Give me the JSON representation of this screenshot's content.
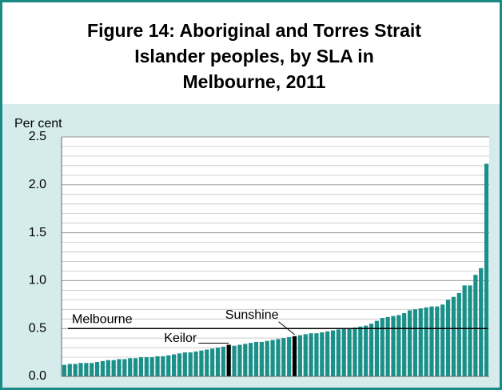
{
  "chart_data": {
    "type": "bar",
    "title": [
      "Figure 14: Aboriginal and Torres Strait",
      "Islander peoples, by SLA in",
      "Melbourne, 2011"
    ],
    "y_label": "Per cent",
    "categories": [
      null,
      null,
      null,
      null,
      null,
      null,
      null,
      null,
      null,
      null,
      null,
      null,
      null,
      null,
      null,
      null,
      null,
      null,
      null,
      null,
      null,
      null,
      null,
      null,
      null,
      null,
      null,
      null,
      null,
      null,
      "Keilor",
      null,
      null,
      null,
      null,
      null,
      null,
      null,
      null,
      null,
      null,
      null,
      "Sunshine",
      null,
      null,
      null,
      null,
      null,
      null,
      null,
      null,
      null,
      null,
      null,
      null,
      null,
      null,
      null,
      null,
      null,
      null,
      null,
      null,
      null,
      null,
      null,
      null,
      null,
      null,
      null,
      null,
      null,
      null,
      null,
      null,
      null,
      null,
      null
    ],
    "values": [
      0.12,
      0.13,
      0.13,
      0.14,
      0.14,
      0.14,
      0.15,
      0.16,
      0.17,
      0.17,
      0.18,
      0.18,
      0.19,
      0.19,
      0.2,
      0.2,
      0.2,
      0.21,
      0.21,
      0.22,
      0.23,
      0.24,
      0.25,
      0.25,
      0.26,
      0.27,
      0.28,
      0.29,
      0.3,
      0.31,
      0.33,
      0.32,
      0.33,
      0.34,
      0.35,
      0.36,
      0.36,
      0.37,
      0.38,
      0.39,
      0.4,
      0.41,
      0.42,
      0.43,
      0.44,
      0.45,
      0.45,
      0.46,
      0.47,
      0.48,
      0.49,
      0.5,
      0.5,
      0.51,
      0.52,
      0.53,
      0.55,
      0.58,
      0.61,
      0.62,
      0.63,
      0.64,
      0.66,
      0.69,
      0.7,
      0.71,
      0.72,
      0.73,
      0.73,
      0.75,
      0.8,
      0.83,
      0.87,
      0.95,
      0.95,
      1.06,
      1.13,
      2.22
    ],
    "color": "#1a9089",
    "highlight_color": "#000000",
    "reference_line": {
      "label": "Melbourne",
      "value": 0.5
    },
    "ylim": [
      0,
      2.5
    ],
    "yticks": [
      {
        "value": 0,
        "label": "0.0"
      },
      0.5,
      {
        "value": 1,
        "label": "1.0"
      },
      1.5,
      {
        "value": 2,
        "label": "2.0"
      },
      2.5
    ],
    "grid": true,
    "minor_grid": true
  }
}
